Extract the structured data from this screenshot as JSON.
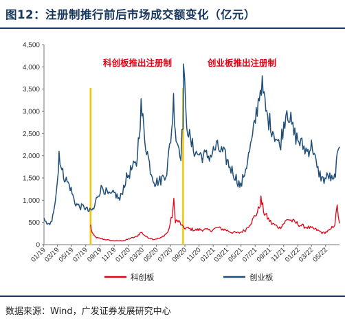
{
  "title": "图12：注册制推行前后市场成交额变化（亿元）",
  "source": "数据来源：Wind，广发证券发展研究中心",
  "chart_data": {
    "type": "line",
    "title": "图12：注册制推行前后市场成交额变化（亿元）",
    "ylabel": "",
    "xlabel": "",
    "ylim": [
      0,
      4500
    ],
    "xlim": [
      "2019-01-02",
      "2022-06-30"
    ],
    "y_ticks": [
      0,
      500,
      1000,
      1500,
      2000,
      2500,
      3000,
      3500,
      4000,
      4500
    ],
    "y_tick_labels": [
      "0",
      "500",
      "1,000",
      "1,500",
      "2,000",
      "2,500",
      "3,000",
      "3,500",
      "4,000",
      "4,500"
    ],
    "x_ticks": [
      "2019-01-01",
      "2019-03-01",
      "2019-05-01",
      "2019-07-01",
      "2019-09-01",
      "2019-11-01",
      "2020-01-01",
      "2020-03-01",
      "2020-05-01",
      "2020-07-01",
      "2020-09-01",
      "2020-11-01",
      "2021-01-01",
      "2021-03-01",
      "2021-05-01",
      "2021-07-01",
      "2021-09-01",
      "2021-11-01",
      "2022-01-01",
      "2022-03-01",
      "2022-05-01"
    ],
    "x_tick_labels": [
      "01/19",
      "03/19",
      "05/19",
      "07/19",
      "09/19",
      "11/19",
      "01/20",
      "03/20",
      "05/20",
      "07/20",
      "09/20",
      "11/20",
      "01/21",
      "03/21",
      "05/21",
      "07/21",
      "09/21",
      "11/21",
      "01/22",
      "03/22",
      "05/22"
    ],
    "grid": false,
    "legend_position": "bottom",
    "series": [
      {
        "name": "科创板",
        "color": "#e60012",
        "points": [
          [
            "2019-07-22",
            450
          ],
          [
            "2019-07-25",
            330
          ],
          [
            "2019-08-05",
            200
          ],
          [
            "2019-08-20",
            150
          ],
          [
            "2019-09-10",
            130
          ],
          [
            "2019-10-15",
            95
          ],
          [
            "2019-11-15",
            85
          ],
          [
            "2019-12-15",
            95
          ],
          [
            "2020-01-10",
            140
          ],
          [
            "2020-02-05",
            180
          ],
          [
            "2020-02-25",
            280
          ],
          [
            "2020-03-20",
            170
          ],
          [
            "2020-04-20",
            120
          ],
          [
            "2020-05-20",
            150
          ],
          [
            "2020-06-20",
            280
          ],
          [
            "2020-07-08",
            650
          ],
          [
            "2020-07-15",
            960
          ],
          [
            "2020-07-22",
            550
          ],
          [
            "2020-08-10",
            500
          ],
          [
            "2020-08-24",
            380
          ],
          [
            "2020-09-10",
            370
          ],
          [
            "2020-10-15",
            330
          ],
          [
            "2020-11-20",
            340
          ],
          [
            "2020-12-20",
            320
          ],
          [
            "2021-01-20",
            380
          ],
          [
            "2021-02-20",
            340
          ],
          [
            "2021-03-20",
            280
          ],
          [
            "2021-04-20",
            260
          ],
          [
            "2021-05-20",
            330
          ],
          [
            "2021-06-20",
            550
          ],
          [
            "2021-07-15",
            780
          ],
          [
            "2021-07-26",
            1010
          ],
          [
            "2021-08-10",
            700
          ],
          [
            "2021-09-10",
            480
          ],
          [
            "2021-10-15",
            380
          ],
          [
            "2021-11-20",
            580
          ],
          [
            "2021-12-20",
            500
          ],
          [
            "2022-01-20",
            420
          ],
          [
            "2022-02-20",
            380
          ],
          [
            "2022-03-20",
            340
          ],
          [
            "2022-04-20",
            260
          ],
          [
            "2022-05-20",
            320
          ],
          [
            "2022-06-10",
            470
          ],
          [
            "2022-06-20",
            840
          ],
          [
            "2022-06-30",
            480
          ]
        ]
      },
      {
        "name": "创业板",
        "color": "#1f4e79",
        "points": [
          [
            "2019-01-02",
            600
          ],
          [
            "2019-01-15",
            440
          ],
          [
            "2019-02-05",
            500
          ],
          [
            "2019-02-20",
            1050
          ],
          [
            "2019-03-05",
            1650
          ],
          [
            "2019-03-08",
            2100
          ],
          [
            "2019-03-20",
            1650
          ],
          [
            "2019-04-08",
            1450
          ],
          [
            "2019-04-25",
            1300
          ],
          [
            "2019-05-15",
            950
          ],
          [
            "2019-06-05",
            850
          ],
          [
            "2019-06-25",
            850
          ],
          [
            "2019-07-15",
            750
          ],
          [
            "2019-08-05",
            800
          ],
          [
            "2019-08-20",
            1100
          ],
          [
            "2019-09-10",
            1300
          ],
          [
            "2019-10-10",
            1100
          ],
          [
            "2019-11-05",
            1150
          ],
          [
            "2019-11-25",
            1000
          ],
          [
            "2019-12-20",
            1450
          ],
          [
            "2020-01-15",
            1700
          ],
          [
            "2020-02-05",
            1800
          ],
          [
            "2020-02-25",
            3100
          ],
          [
            "2020-03-15",
            2300
          ],
          [
            "2020-04-05",
            1700
          ],
          [
            "2020-04-25",
            1400
          ],
          [
            "2020-05-20",
            1450
          ],
          [
            "2020-06-15",
            1650
          ],
          [
            "2020-07-06",
            2600
          ],
          [
            "2020-07-14",
            3250
          ],
          [
            "2020-07-25",
            2400
          ],
          [
            "2020-08-15",
            2050
          ],
          [
            "2020-08-24",
            2800
          ],
          [
            "2020-08-26",
            4050
          ],
          [
            "2020-09-05",
            2900
          ],
          [
            "2020-09-25",
            2300
          ],
          [
            "2020-10-20",
            2050
          ],
          [
            "2020-11-20",
            2000
          ],
          [
            "2020-12-20",
            2000
          ],
          [
            "2021-01-15",
            2200
          ],
          [
            "2021-02-15",
            2050
          ],
          [
            "2021-03-10",
            1800
          ],
          [
            "2021-04-10",
            1500
          ],
          [
            "2021-04-30",
            1300
          ],
          [
            "2021-05-25",
            1800
          ],
          [
            "2021-06-20",
            2400
          ],
          [
            "2021-07-10",
            3100
          ],
          [
            "2021-07-28",
            3650
          ],
          [
            "2021-08-20",
            2900
          ],
          [
            "2021-09-15",
            2600
          ],
          [
            "2021-10-15",
            2200
          ],
          [
            "2021-11-15",
            3100
          ],
          [
            "2021-12-15",
            2500
          ],
          [
            "2022-01-10",
            2300
          ],
          [
            "2022-02-10",
            2100
          ],
          [
            "2022-03-05",
            2250
          ],
          [
            "2022-03-25",
            1700
          ],
          [
            "2022-04-20",
            1450
          ],
          [
            "2022-05-15",
            1550
          ],
          [
            "2022-06-05",
            1400
          ],
          [
            "2022-06-20",
            1900
          ],
          [
            "2022-06-30",
            2200
          ]
        ]
      }
    ],
    "markers": [
      {
        "date": "2019-07-22",
        "label": "科创板推出注册制",
        "color": "#f5c400"
      },
      {
        "date": "2020-08-24",
        "label": "创业板推出注册制",
        "color": "#f5c400"
      }
    ]
  }
}
